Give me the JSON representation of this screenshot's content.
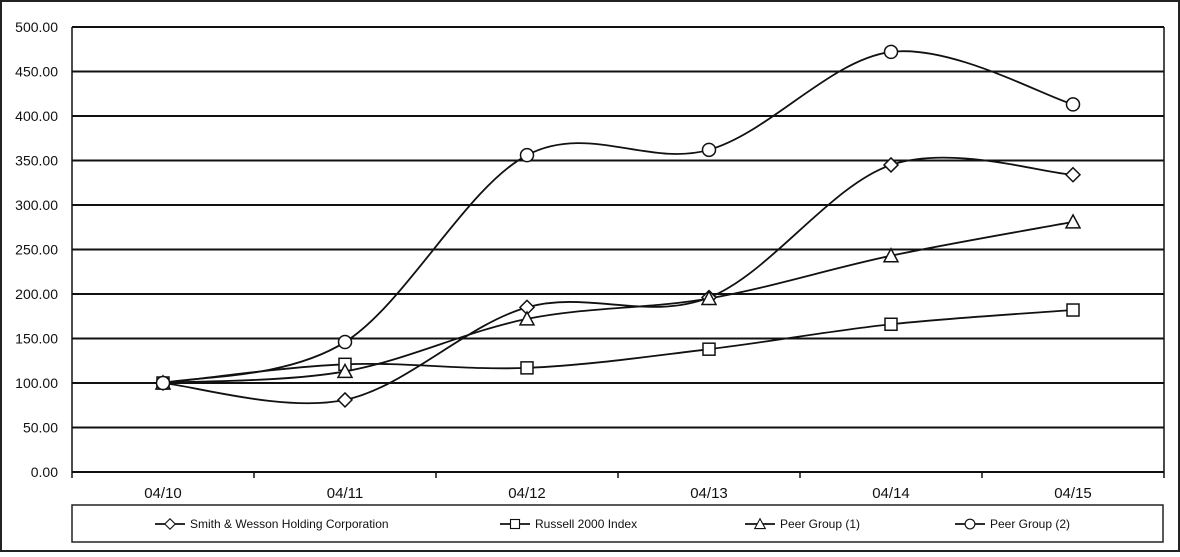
{
  "chart_data": {
    "type": "line",
    "title": "",
    "xlabel": "",
    "ylabel": "",
    "categories": [
      "04/10",
      "04/11",
      "04/12",
      "04/13",
      "04/14",
      "04/15"
    ],
    "ylim": [
      0,
      500
    ],
    "yticks": [
      "0.00",
      "50.00",
      "100.00",
      "150.00",
      "200.00",
      "250.00",
      "300.00",
      "350.00",
      "400.00",
      "450.00",
      "500.00"
    ],
    "grid": true,
    "smoothed": true,
    "legend_position": "bottom",
    "series": [
      {
        "name": "Smith & Wesson Holding Corporation",
        "marker": "diamond",
        "values": [
          100,
          81,
          185,
          196,
          345,
          334
        ]
      },
      {
        "name": "Russell 2000 Index",
        "marker": "square",
        "values": [
          100,
          121,
          117,
          138,
          166,
          182
        ]
      },
      {
        "name": "Peer Group (1)",
        "marker": "triangle",
        "values": [
          100,
          113,
          172,
          195,
          243,
          281
        ]
      },
      {
        "name": "Peer Group (2)",
        "marker": "circle",
        "values": [
          100,
          146,
          356,
          362,
          472,
          413
        ]
      }
    ],
    "colors": {
      "line": "#111111",
      "marker_fill": "#ffffff",
      "grid": "#111111"
    }
  }
}
